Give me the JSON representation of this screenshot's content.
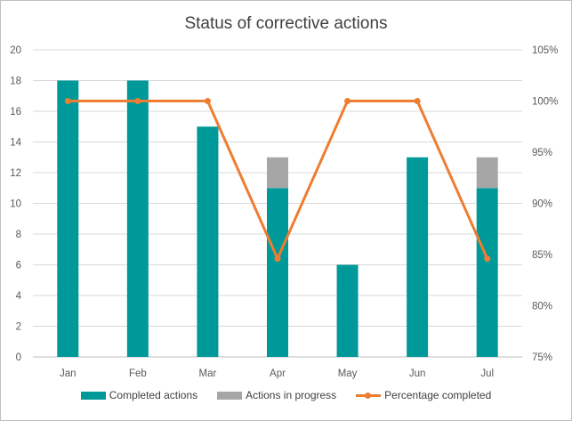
{
  "chart_data": {
    "type": "bar",
    "title": "Status of corrective actions",
    "categories": [
      "Jan",
      "Feb",
      "Mar",
      "Apr",
      "May",
      "Jun",
      "Jul"
    ],
    "stacked": true,
    "series": [
      {
        "name": "Completed actions",
        "type": "bar",
        "axis": "left",
        "color": "#009999",
        "values": [
          18,
          18,
          15,
          11,
          6,
          13,
          11
        ]
      },
      {
        "name": "Actions in progress",
        "type": "bar",
        "axis": "left",
        "color": "#a6a6a6",
        "values": [
          0,
          0,
          0,
          2,
          0,
          0,
          2
        ]
      },
      {
        "name": "Percentage completed",
        "type": "line",
        "axis": "right",
        "color": "#ed7d31",
        "values": [
          100,
          100,
          100,
          84.6,
          100,
          100,
          84.6
        ]
      }
    ],
    "y_left": {
      "min": 0,
      "max": 20,
      "step": 2,
      "ticks": [
        "0",
        "2",
        "4",
        "6",
        "8",
        "10",
        "12",
        "14",
        "16",
        "18",
        "20"
      ]
    },
    "y_right": {
      "min": 75,
      "max": 105,
      "step": 5,
      "ticks": [
        "75%",
        "80%",
        "85%",
        "90%",
        "95%",
        "100%",
        "105%"
      ]
    },
    "grid": true,
    "legend": "bottom"
  }
}
